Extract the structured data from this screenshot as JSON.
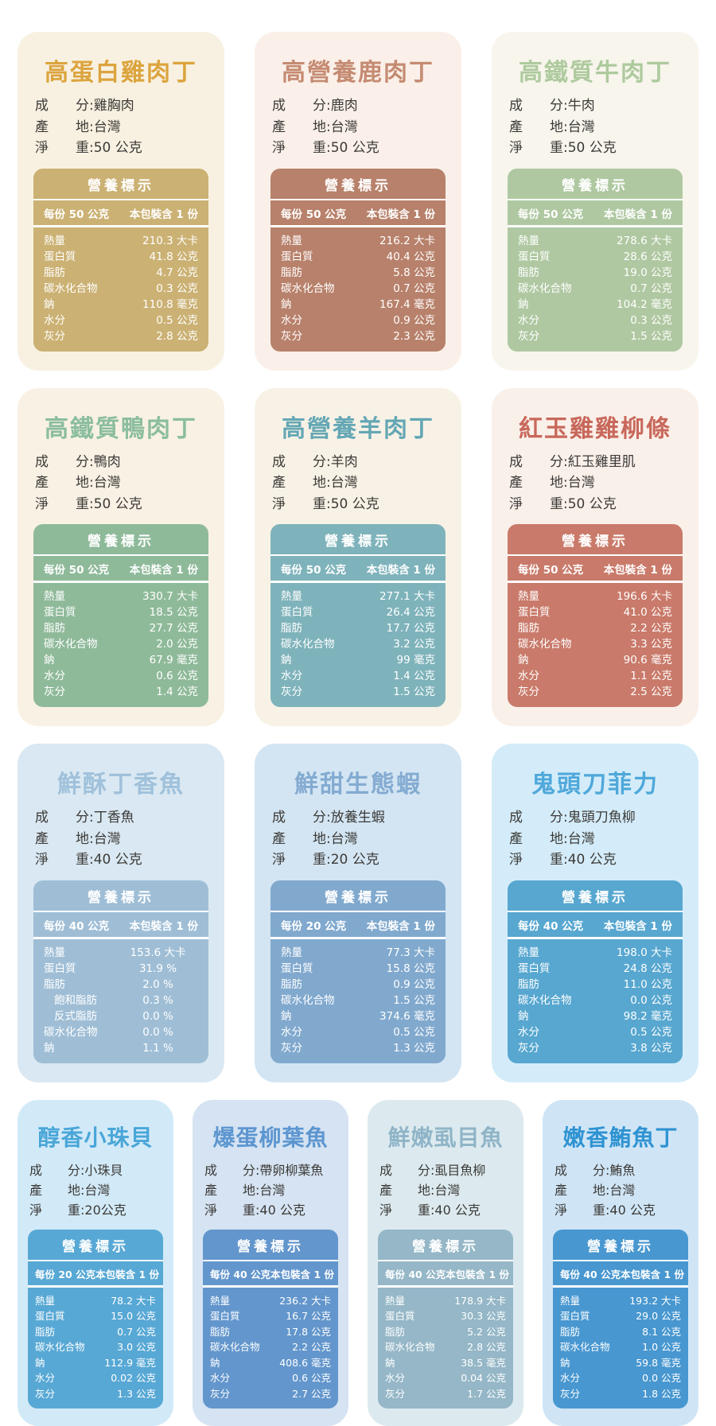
{
  "page": {
    "background": "#ffffff"
  },
  "cards": [
    {
      "title": "高蛋白雞肉丁",
      "colors": {
        "bg": "#F8F1E1",
        "title": "#DCA43E",
        "table": "#CBB173"
      },
      "info": [
        {
          "label": "成　　分:",
          "value": "雞胸肉"
        },
        {
          "label": "產　　地:",
          "value": "台灣"
        },
        {
          "label": "淨　　重:",
          "value": "50 公克"
        }
      ],
      "table": {
        "header": "營養標示",
        "serving": "每份 50 公克",
        "package": "本包裝含 1 份",
        "rows": [
          {
            "label": "熱量",
            "value": "210.3 大卡"
          },
          {
            "label": "蛋白質",
            "value": "41.8 公克"
          },
          {
            "label": "脂肪",
            "value": "4.7 公克"
          },
          {
            "label": "碳水化合物",
            "value": "0.3 公克"
          },
          {
            "label": "鈉",
            "value": "110.8 毫克"
          },
          {
            "label": "水分",
            "value": "0.5 公克"
          },
          {
            "label": "灰分",
            "value": "2.8 公克"
          }
        ]
      }
    },
    {
      "title": "高營養鹿肉丁",
      "colors": {
        "bg": "#FAF0E9",
        "title": "#C58B72",
        "table": "#B8816B"
      },
      "info": [
        {
          "label": "成　　分:",
          "value": "鹿肉"
        },
        {
          "label": "產　　地:",
          "value": "台灣"
        },
        {
          "label": "淨　　重:",
          "value": "50 公克"
        }
      ],
      "table": {
        "header": "營養標示",
        "serving": "每份 50 公克",
        "package": "本包裝含 1 份",
        "rows": [
          {
            "label": "熱量",
            "value": "216.2 大卡"
          },
          {
            "label": "蛋白質",
            "value": "40.4 公克"
          },
          {
            "label": "脂肪",
            "value": "5.8 公克"
          },
          {
            "label": "碳水化合物",
            "value": "0.7 公克"
          },
          {
            "label": "鈉",
            "value": "167.4 毫克"
          },
          {
            "label": "水分",
            "value": "0.9 公克"
          },
          {
            "label": "灰分",
            "value": "2.3 公克"
          }
        ]
      }
    },
    {
      "title": "高鐵質牛肉丁",
      "colors": {
        "bg": "#F7F5EC",
        "title": "#AECA9E",
        "table": "#AFC8A1"
      },
      "info": [
        {
          "label": "成　　分:",
          "value": "牛肉"
        },
        {
          "label": "產　　地:",
          "value": "台灣"
        },
        {
          "label": "淨　　重:",
          "value": "50 公克"
        }
      ],
      "table": {
        "header": "營養標示",
        "serving": "每份 50 公克",
        "package": "本包裝含 1 份",
        "rows": [
          {
            "label": "熱量",
            "value": "278.6 大卡"
          },
          {
            "label": "蛋白質",
            "value": "28.6 公克"
          },
          {
            "label": "脂肪",
            "value": "19.0 公克"
          },
          {
            "label": "碳水化合物",
            "value": "0.7 公克"
          },
          {
            "label": "鈉",
            "value": "104.2 毫克"
          },
          {
            "label": "水分",
            "value": "0.3 公克"
          },
          {
            "label": "灰分",
            "value": "1.5 公克"
          }
        ]
      }
    },
    {
      "title": "高鐵質鴨肉丁",
      "colors": {
        "bg": "#F8F1E4",
        "title": "#8BBD9E",
        "table": "#8FBA9A"
      },
      "info": [
        {
          "label": "成　　分:",
          "value": "鴨肉"
        },
        {
          "label": "產　　地:",
          "value": "台灣"
        },
        {
          "label": "淨　　重:",
          "value": "50 公克"
        }
      ],
      "table": {
        "header": "營養標示",
        "serving": "每份 50 公克",
        "package": "本包裝含 1 份",
        "rows": [
          {
            "label": "熱量",
            "value": "330.7 大卡"
          },
          {
            "label": "蛋白質",
            "value": "18.5 公克"
          },
          {
            "label": "脂肪",
            "value": "27.7 公克"
          },
          {
            "label": "碳水化合物",
            "value": "2.0 公克"
          },
          {
            "label": "鈉",
            "value": "67.9 毫克"
          },
          {
            "label": "水分",
            "value": "0.6 公克"
          },
          {
            "label": "灰分",
            "value": "1.4 公克"
          }
        ]
      }
    },
    {
      "title": "高營養羊肉丁",
      "colors": {
        "bg": "#F8F2E6",
        "title": "#64A7B4",
        "table": "#7FB3BB"
      },
      "info": [
        {
          "label": "成　　分:",
          "value": "羊肉"
        },
        {
          "label": "產　　地:",
          "value": "台灣"
        },
        {
          "label": "淨　　重:",
          "value": "50 公克"
        }
      ],
      "table": {
        "header": "營養標示",
        "serving": "每份 50 公克",
        "package": "本包裝含 1 份",
        "rows": [
          {
            "label": "熱量",
            "value": "277.1 大卡"
          },
          {
            "label": "蛋白質",
            "value": "26.4 公克"
          },
          {
            "label": "脂肪",
            "value": "17.7 公克"
          },
          {
            "label": "碳水化合物",
            "value": "3.2 公克"
          },
          {
            "label": "鈉",
            "value": "99 毫克"
          },
          {
            "label": "水分",
            "value": "1.4 公克"
          },
          {
            "label": "灰分",
            "value": "1.5 公克"
          }
        ]
      }
    },
    {
      "title": "紅玉雞雞柳條",
      "colors": {
        "bg": "#FAF0EA",
        "title": "#C8685B",
        "table": "#C97A6A"
      },
      "info": [
        {
          "label": "成　　分:",
          "value": "紅玉雞里肌"
        },
        {
          "label": "產　　地:",
          "value": "台灣"
        },
        {
          "label": "淨　　重:",
          "value": "50 公克"
        }
      ],
      "table": {
        "header": "營養標示",
        "serving": "每份 50 公克",
        "package": "本包裝含 1 份",
        "rows": [
          {
            "label": "熱量",
            "value": "196.6 大卡"
          },
          {
            "label": "蛋白質",
            "value": "41.0 公克"
          },
          {
            "label": "脂肪",
            "value": "2.2 公克"
          },
          {
            "label": "碳水化合物",
            "value": "3.3 公克"
          },
          {
            "label": "鈉",
            "value": "90.6 毫克"
          },
          {
            "label": "水分",
            "value": "1.1 公克"
          },
          {
            "label": "灰分",
            "value": "2.5 公克"
          }
        ]
      }
    },
    {
      "title": "鮮酥丁香魚",
      "colors": {
        "bg": "#D9E8F2",
        "title": "#A0C1DB",
        "table": "#9FBED6"
      },
      "value_align": "center",
      "info": [
        {
          "label": "成　　分:",
          "value": "丁香魚"
        },
        {
          "label": "產　　地:",
          "value": "台灣"
        },
        {
          "label": "淨　　重:",
          "value": "40 公克"
        }
      ],
      "table": {
        "header": "營養標示",
        "serving": "每份 40 公克",
        "package": "本包裝含 1 份",
        "rows": [
          {
            "label": "熱量",
            "value": "153.6 大卡"
          },
          {
            "label": "蛋白質",
            "value": "31.9 %"
          },
          {
            "label": "脂肪",
            "value": "2.0 %"
          },
          {
            "label": "飽和脂肪",
            "value": "0.3 %",
            "indent": true
          },
          {
            "label": "反式脂肪",
            "value": "0.0 %",
            "indent": true
          },
          {
            "label": "碳水化合物",
            "value": "0.0 %"
          },
          {
            "label": "鈉",
            "value": "1.1 %"
          }
        ]
      }
    },
    {
      "title": "鮮甜生態蝦",
      "colors": {
        "bg": "#D3E5F3",
        "title": "#84ABD1",
        "table": "#81A9CE"
      },
      "info": [
        {
          "label": "成　　分:",
          "value": "放養生蝦"
        },
        {
          "label": "產　　地:",
          "value": "台灣"
        },
        {
          "label": "淨　　重:",
          "value": "20 公克"
        }
      ],
      "table": {
        "header": "營養標示",
        "serving": "每份 20 公克",
        "package": "本包裝含 1 份",
        "rows": [
          {
            "label": "熱量",
            "value": "77.3 大卡"
          },
          {
            "label": "蛋白質",
            "value": "15.8 公克"
          },
          {
            "label": "脂肪",
            "value": "0.9 公克"
          },
          {
            "label": "碳水化合物",
            "value": "1.5 公克"
          },
          {
            "label": "鈉",
            "value": "374.6 毫克"
          },
          {
            "label": "水分",
            "value": "0.5 公克"
          },
          {
            "label": "灰分",
            "value": "1.3 公克"
          }
        ]
      }
    },
    {
      "title": "鬼頭刀菲力",
      "colors": {
        "bg": "#D4ECF9",
        "title": "#4FA8DA",
        "table": "#57A7D0"
      },
      "info": [
        {
          "label": "成　　分:",
          "value": "鬼頭刀魚柳"
        },
        {
          "label": "產　　地:",
          "value": "台灣"
        },
        {
          "label": "淨　　重:",
          "value": "40 公克"
        }
      ],
      "table": {
        "header": "營養標示",
        "serving": "每份 40 公克",
        "package": "本包裝含 1 份",
        "rows": [
          {
            "label": "熱量",
            "value": "198.0 大卡"
          },
          {
            "label": "蛋白質",
            "value": "24.8 公克"
          },
          {
            "label": "脂肪",
            "value": "11.0 公克"
          },
          {
            "label": "碳水化合物",
            "value": "0.0 公克"
          },
          {
            "label": "鈉",
            "value": "98.2 毫克"
          },
          {
            "label": "水分",
            "value": "0.5 公克"
          },
          {
            "label": "灰分",
            "value": "3.8 公克"
          }
        ]
      }
    },
    {
      "title": "醇香小珠貝",
      "colors": {
        "bg": "#D2EAF8",
        "title": "#4AA6D8",
        "table": "#58A8D5"
      },
      "info": [
        {
          "label": "成　　分:",
          "value": "小珠貝"
        },
        {
          "label": "產　　地:",
          "value": "台灣"
        },
        {
          "label": "淨　　重:",
          "value": "20公克"
        }
      ],
      "table": {
        "header": "營養標示",
        "serving": "每份 20 公克",
        "package": "本包裝含 1 份",
        "rows": [
          {
            "label": "熱量",
            "value": "78.2 大卡"
          },
          {
            "label": "蛋白質",
            "value": "15.0 公克"
          },
          {
            "label": "脂肪",
            "value": "0.7 公克"
          },
          {
            "label": "碳水化合物",
            "value": "3.0 公克"
          },
          {
            "label": "鈉",
            "value": "112.9 毫克"
          },
          {
            "label": "水分",
            "value": "0.02 公克"
          },
          {
            "label": "灰分",
            "value": "1.3 公克"
          }
        ]
      }
    },
    {
      "title": "爆蛋柳葉魚",
      "colors": {
        "bg": "#D5E3F2",
        "title": "#5D96D0",
        "table": "#6396CC"
      },
      "info": [
        {
          "label": "成　　分:",
          "value": "帶卵柳葉魚"
        },
        {
          "label": "產　　地:",
          "value": "台灣"
        },
        {
          "label": "淨　　重:",
          "value": "40 公克"
        }
      ],
      "table": {
        "header": "營養標示",
        "serving": "每份 40 公克",
        "package": "本包裝含 1 份",
        "rows": [
          {
            "label": "熱量",
            "value": "236.2 大卡"
          },
          {
            "label": "蛋白質",
            "value": "16.7 公克"
          },
          {
            "label": "脂肪",
            "value": "17.8 公克"
          },
          {
            "label": "碳水化合物",
            "value": "2.2 公克"
          },
          {
            "label": "鈉",
            "value": "408.6 毫克"
          },
          {
            "label": "水分",
            "value": "0.6 公克"
          },
          {
            "label": "灰分",
            "value": "2.7 公克"
          }
        ]
      }
    },
    {
      "title": "鮮嫩虱目魚",
      "colors": {
        "bg": "#DCEAEF",
        "title": "#8FB4C7",
        "table": "#95B7C7"
      },
      "info": [
        {
          "label": "成　　分:",
          "value": "虱目魚柳"
        },
        {
          "label": "產　　地:",
          "value": "台灣"
        },
        {
          "label": "淨　　重:",
          "value": "40 公克"
        }
      ],
      "table": {
        "header": "營養標示",
        "serving": "每份 40 公克",
        "package": "本包裝含 1 份",
        "rows": [
          {
            "label": "熱量",
            "value": "178.9 大卡"
          },
          {
            "label": "蛋白質",
            "value": "30.3 公克"
          },
          {
            "label": "脂肪",
            "value": "5.2 公克"
          },
          {
            "label": "碳水化合物",
            "value": "2.8 公克"
          },
          {
            "label": "鈉",
            "value": "38.5 毫克"
          },
          {
            "label": "水分",
            "value": "0.04 公克"
          },
          {
            "label": "灰分",
            "value": "1.7 公克"
          }
        ]
      }
    },
    {
      "title": "嫩香鮪魚丁",
      "colors": {
        "bg": "#CFE5F6",
        "title": "#2F93D2",
        "table": "#4897D0"
      },
      "info": [
        {
          "label": "成　　分:",
          "value": "鮪魚"
        },
        {
          "label": "產　　地:",
          "value": "台灣"
        },
        {
          "label": "淨　　重:",
          "value": "40 公克"
        }
      ],
      "table": {
        "header": "營養標示",
        "serving": "每份 40 公克",
        "package": "本包裝含 1 份",
        "rows": [
          {
            "label": "熱量",
            "value": "193.2 大卡"
          },
          {
            "label": "蛋白質",
            "value": "29.0 公克"
          },
          {
            "label": "脂肪",
            "value": "8.1 公克"
          },
          {
            "label": "碳水化合物",
            "value": "1.0 公克"
          },
          {
            "label": "鈉",
            "value": "59.8 毫克"
          },
          {
            "label": "水分",
            "value": "0.0 公克"
          },
          {
            "label": "灰分",
            "value": "1.8 公克"
          }
        ]
      }
    }
  ]
}
